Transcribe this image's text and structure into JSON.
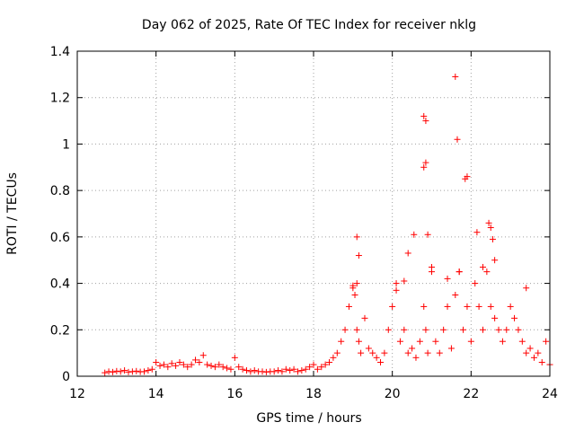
{
  "chart_data": {
    "type": "scatter",
    "title": "Day 062 of 2025, Rate Of TEC Index for receiver nklg",
    "xlabel": "GPS time / hours",
    "ylabel": "ROTI / TECUs",
    "xlim": [
      12,
      24
    ],
    "ylim": [
      0,
      1.4
    ],
    "x_ticks": [
      "12",
      "14",
      "16",
      "18",
      "20",
      "22",
      "24"
    ],
    "y_ticks": [
      "0",
      "0.2",
      "0.4",
      "0.6",
      "0.8",
      "1",
      "1.2",
      "1.4"
    ],
    "grid": true,
    "marker": "+",
    "color": "#ff0000",
    "series": [
      {
        "x": [
          12.7,
          12.8,
          12.9,
          13.0,
          13.1,
          13.2,
          13.3,
          13.4,
          13.5,
          13.6,
          13.7,
          13.8,
          13.9,
          14.0,
          14.1,
          14.2,
          14.3,
          14.4,
          14.5,
          14.6,
          14.7,
          14.8,
          14.9,
          15.0,
          15.1,
          15.2,
          15.3,
          15.4,
          15.5,
          15.6,
          15.7,
          15.8,
          15.9,
          16.0,
          16.1,
          16.2,
          16.3,
          16.4,
          16.5,
          16.6,
          16.7,
          16.8,
          16.9,
          17.0,
          17.1,
          17.2,
          17.3,
          17.4,
          17.5,
          17.6,
          17.7,
          17.8,
          17.9,
          18.0,
          18.1,
          18.2,
          18.3,
          18.4,
          18.5,
          18.6,
          18.7,
          18.8,
          18.9,
          19.0,
          19.05,
          19.1,
          19.15,
          19.2,
          19.3,
          19.4,
          19.5,
          19.6,
          19.7,
          19.8,
          19.9,
          20.0,
          20.1,
          20.2,
          20.3,
          20.4,
          20.5,
          20.6,
          20.7,
          20.8,
          20.85,
          20.9,
          21.0,
          21.1,
          21.2,
          21.3,
          21.4,
          21.5,
          21.6,
          21.7,
          21.8,
          21.9,
          22.0,
          22.1,
          22.2,
          22.3,
          22.4,
          22.5,
          22.6,
          22.7,
          22.8,
          22.9,
          23.0,
          23.1,
          23.2,
          23.3,
          23.4,
          23.5,
          23.6,
          23.7,
          23.8,
          23.9,
          24.0,
          19.1,
          19.15,
          20.3,
          20.4,
          20.55,
          20.8,
          20.85,
          20.85,
          20.8,
          20.9,
          21.0,
          21.6,
          21.65,
          21.85,
          21.9,
          22.15,
          22.45,
          22.5,
          22.55,
          23.4,
          21.7,
          22.6,
          20.1,
          19.0,
          19.1,
          21.4,
          22.3
        ],
        "y": [
          0.015,
          0.02,
          0.018,
          0.022,
          0.02,
          0.025,
          0.018,
          0.02,
          0.022,
          0.019,
          0.02,
          0.025,
          0.03,
          0.06,
          0.045,
          0.05,
          0.04,
          0.055,
          0.045,
          0.06,
          0.05,
          0.04,
          0.05,
          0.07,
          0.06,
          0.09,
          0.05,
          0.045,
          0.04,
          0.05,
          0.04,
          0.035,
          0.03,
          0.08,
          0.04,
          0.03,
          0.025,
          0.02,
          0.025,
          0.02,
          0.02,
          0.018,
          0.02,
          0.02,
          0.025,
          0.02,
          0.03,
          0.025,
          0.03,
          0.02,
          0.025,
          0.03,
          0.04,
          0.05,
          0.03,
          0.04,
          0.05,
          0.06,
          0.08,
          0.1,
          0.15,
          0.2,
          0.3,
          0.38,
          0.35,
          0.2,
          0.15,
          0.1,
          0.25,
          0.12,
          0.1,
          0.08,
          0.06,
          0.1,
          0.2,
          0.3,
          0.4,
          0.15,
          0.2,
          0.1,
          0.12,
          0.08,
          0.15,
          0.3,
          0.2,
          0.1,
          0.45,
          0.15,
          0.1,
          0.2,
          0.3,
          0.12,
          0.35,
          0.45,
          0.2,
          0.3,
          0.15,
          0.4,
          0.3,
          0.2,
          0.45,
          0.3,
          0.25,
          0.2,
          0.15,
          0.2,
          0.3,
          0.25,
          0.2,
          0.15,
          0.1,
          0.12,
          0.08,
          0.1,
          0.06,
          0.15,
          0.05,
          0.6,
          0.52,
          0.41,
          0.53,
          0.61,
          0.9,
          1.1,
          0.92,
          1.12,
          0.61,
          0.47,
          1.29,
          1.02,
          0.85,
          0.86,
          0.62,
          0.66,
          0.64,
          0.59,
          0.38,
          0.45,
          0.5,
          0.37,
          0.39,
          0.4,
          0.42,
          0.47
        ]
      }
    ]
  }
}
